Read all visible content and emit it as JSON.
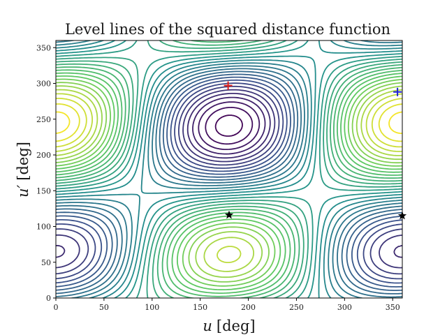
{
  "chart_data": {
    "type": "contour",
    "title": "Level lines of the squared distance function",
    "xlabel": {
      "symbol": "u",
      "unit": "[deg]"
    },
    "ylabel": {
      "symbol": "u′",
      "unit": "[deg]"
    },
    "xlim": [
      0,
      360
    ],
    "ylim": [
      0,
      360
    ],
    "xticks": [
      0,
      50,
      100,
      150,
      200,
      250,
      300,
      350
    ],
    "yticks": [
      0,
      50,
      100,
      150,
      200,
      250,
      300,
      350
    ],
    "colormap": [
      "#440154",
      "#3b528b",
      "#21918c",
      "#5ec962",
      "#fde725"
    ],
    "grid": false,
    "markers": [
      {
        "shape": "plus",
        "x": 179,
        "y": 297,
        "color": "#e0201b"
      },
      {
        "shape": "plus",
        "x": 355,
        "y": 288,
        "color": "#1f1fd1"
      },
      {
        "shape": "star",
        "x": 180,
        "y": 116,
        "color": "#000000"
      },
      {
        "shape": "star",
        "x": 360,
        "y": 115,
        "color": "#000000"
      }
    ]
  }
}
